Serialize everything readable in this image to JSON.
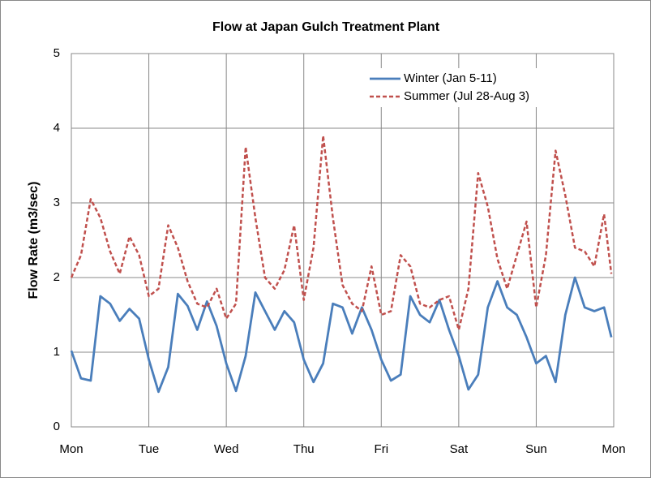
{
  "chart_data": {
    "type": "line",
    "title": "Flow at Japan Gulch Treatment Plant",
    "y_label": "Flow Rate (m3/sec)",
    "x": [
      0,
      0.125,
      0.25,
      0.375,
      0.5,
      0.625,
      0.75,
      0.875,
      1,
      1.125,
      1.25,
      1.375,
      1.5,
      1.625,
      1.75,
      1.875,
      2,
      2.125,
      2.25,
      2.375,
      2.5,
      2.625,
      2.75,
      2.875,
      3,
      3.125,
      3.25,
      3.375,
      3.5,
      3.625,
      3.75,
      3.875,
      4,
      4.125,
      4.25,
      4.375,
      4.5,
      4.625,
      4.75,
      4.875,
      5,
      5.125,
      5.25,
      5.375,
      5.5,
      5.625,
      5.75,
      5.875,
      6,
      6.125,
      6.25,
      6.375,
      6.5,
      6.625,
      6.75,
      6.875,
      6.97
    ],
    "series": [
      {
        "name": "Winter (Jan 5-11)",
        "color": "#4a7ebb",
        "dash": false,
        "values": [
          1.02,
          0.65,
          0.62,
          1.75,
          1.65,
          1.42,
          1.58,
          1.45,
          0.9,
          0.47,
          0.8,
          1.78,
          1.62,
          1.3,
          1.68,
          1.35,
          0.85,
          0.48,
          0.95,
          1.8,
          1.55,
          1.3,
          1.55,
          1.4,
          0.9,
          0.6,
          0.85,
          1.65,
          1.6,
          1.25,
          1.6,
          1.3,
          0.9,
          0.62,
          0.7,
          1.75,
          1.5,
          1.4,
          1.7,
          1.3,
          0.95,
          0.5,
          0.7,
          1.6,
          1.95,
          1.6,
          1.5,
          1.2,
          0.85,
          0.95,
          0.6,
          1.5,
          2.0,
          1.6,
          1.55,
          1.6,
          1.2
        ]
      },
      {
        "name": "Summer (Jul 28-Aug 3)",
        "color": "#c0504d",
        "dash": true,
        "values": [
          2.0,
          2.3,
          3.05,
          2.8,
          2.35,
          2.05,
          2.55,
          2.3,
          1.75,
          1.85,
          2.7,
          2.4,
          1.95,
          1.65,
          1.6,
          1.85,
          1.45,
          1.65,
          3.75,
          2.8,
          2.0,
          1.85,
          2.1,
          2.7,
          1.7,
          2.4,
          3.9,
          2.8,
          1.9,
          1.65,
          1.55,
          2.15,
          1.5,
          1.55,
          2.3,
          2.15,
          1.65,
          1.6,
          1.7,
          1.75,
          1.3,
          1.85,
          3.4,
          2.95,
          2.25,
          1.85,
          2.3,
          2.75,
          1.6,
          2.3,
          3.7,
          3.1,
          2.4,
          2.35,
          2.15,
          2.85,
          2.05
        ]
      }
    ],
    "xlim": [
      0,
      7
    ],
    "xticks": [
      {
        "value": 0,
        "label": "Mon"
      },
      {
        "value": 1,
        "label": "Tue"
      },
      {
        "value": 2,
        "label": "Wed"
      },
      {
        "value": 3,
        "label": "Thu"
      },
      {
        "value": 4,
        "label": "Fri"
      },
      {
        "value": 5,
        "label": "Sat"
      },
      {
        "value": 6,
        "label": "Sun"
      },
      {
        "value": 7,
        "label": "Mon"
      }
    ],
    "ylim": [
      0,
      5
    ],
    "yticks": [
      0,
      1,
      2,
      3,
      4,
      5
    ],
    "grid": true,
    "legend": "top-right"
  }
}
